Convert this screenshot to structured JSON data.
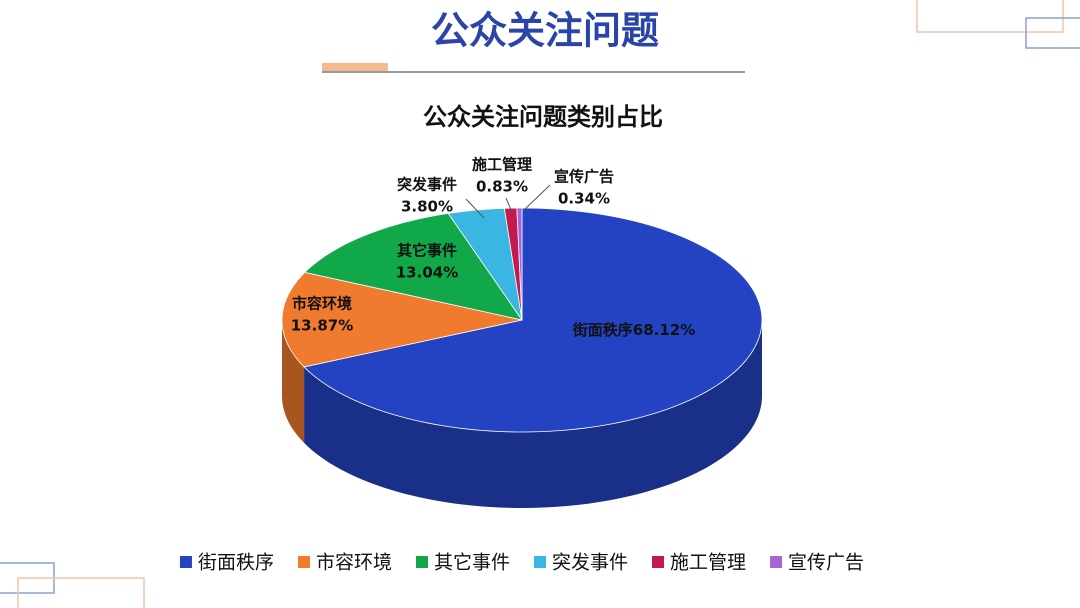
{
  "header": {
    "title": "公众关注问题"
  },
  "chart_data": {
    "type": "pie3d",
    "title": "公众关注问题类别占比",
    "categories": [
      "街面秩序",
      "市容环境",
      "其它事件",
      "突发事件",
      "施工管理",
      "宣传广告"
    ],
    "values": [
      68.12,
      13.87,
      13.04,
      3.8,
      0.83,
      0.34
    ],
    "value_labels": [
      "68.12%",
      "13.87%",
      "13.04%",
      "3.80%",
      "0.83%",
      "0.34%"
    ],
    "colors": [
      "#2443c2",
      "#f07a2e",
      "#11a84a",
      "#3ab6e2",
      "#c21a50",
      "#a565d8"
    ],
    "legend": "bottom"
  }
}
